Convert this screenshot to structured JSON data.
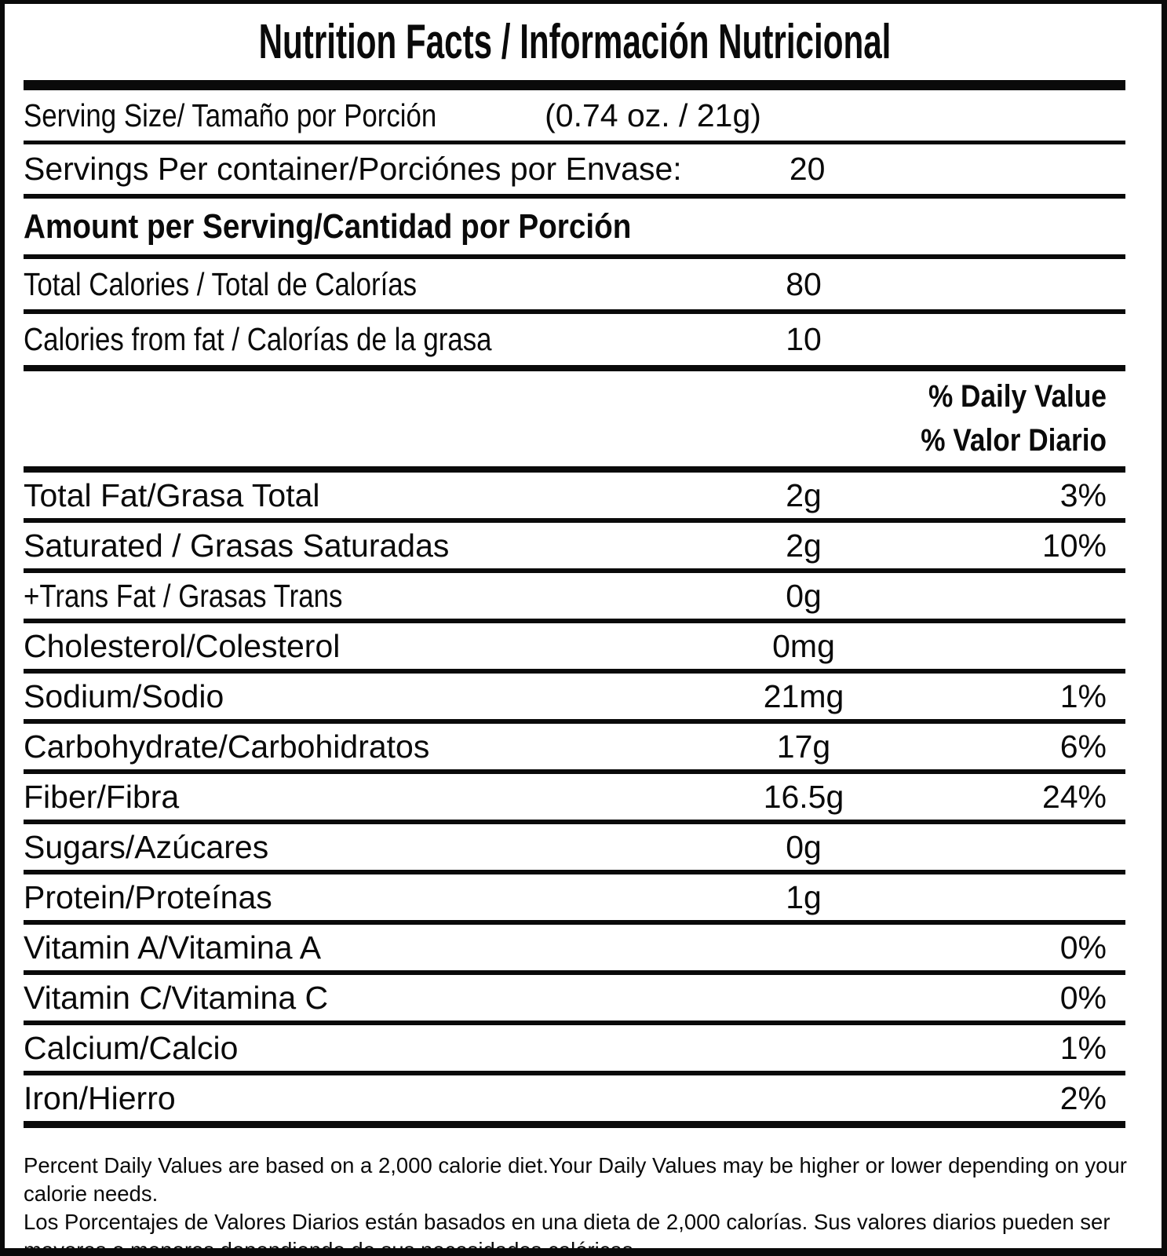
{
  "label": {
    "title": "Nutrition Facts / Información Nutricional",
    "serving_size": {
      "label": "Serving Size/ Tamaño por Porción",
      "value": "(0.74 oz. / 21g)"
    },
    "servings_per_container": {
      "label": "Servings Per container/Porciónes por Envase:",
      "value": "20"
    },
    "amount_per_serving_heading": "Amount per Serving/Cantidad por Porción",
    "calories": {
      "total": {
        "label": "Total Calories / Total de Calorías",
        "value": "80"
      },
      "from_fat": {
        "label": "Calories from fat / Calorías de la grasa",
        "value": "10"
      }
    },
    "daily_value_header": {
      "line1": "% Daily Value",
      "line2": "% Valor Diario"
    },
    "nutrients": [
      {
        "label": "Total Fat/Grasa Total",
        "amount": "2g",
        "dv": "3%"
      },
      {
        "label": "Saturated / Grasas Saturadas",
        "amount": "2g",
        "dv": "10%"
      },
      {
        "label": "+Trans Fat / Grasas Trans",
        "amount": "0g",
        "dv": ""
      },
      {
        "label": "Cholesterol/Colesterol",
        "amount": "0mg",
        "dv": ""
      },
      {
        "label": "Sodium/Sodio",
        "amount": "21mg",
        "dv": "1%"
      },
      {
        "label": "Carbohydrate/Carbohidratos",
        "amount": "17g",
        "dv": "6%"
      },
      {
        "label": "Fiber/Fibra",
        "amount": "16.5g",
        "dv": "24%"
      },
      {
        "label": "Sugars/Azúcares",
        "amount": "0g",
        "dv": ""
      },
      {
        "label": "Protein/Proteínas",
        "amount": "1g",
        "dv": ""
      },
      {
        "label": "Vitamin A/Vitamina A",
        "amount": "",
        "dv": "0%"
      },
      {
        "label": "Vitamin C/Vitamina C",
        "amount": "",
        "dv": "0%"
      },
      {
        "label": "Calcium/Calcio",
        "amount": "",
        "dv": "1%"
      },
      {
        "label": "Iron/Hierro",
        "amount": "",
        "dv": "2%"
      }
    ],
    "footnote": {
      "english_lines": [
        "Percent Daily Values are based on a 2,000 calorie diet.Your Daily Values may be higher or lower depending on your",
        "calorie needs."
      ],
      "spanish_lines": [
        "Los Porcentajes de Valores Diarios están basados en una dieta de 2,000 calorías. Sus valores diarios pueden ser",
        "mayores o menores dependiendo de sus necesidades calóricas"
      ]
    },
    "colors": {
      "ink": "#0a0a0a",
      "background": "#ffffff"
    }
  }
}
